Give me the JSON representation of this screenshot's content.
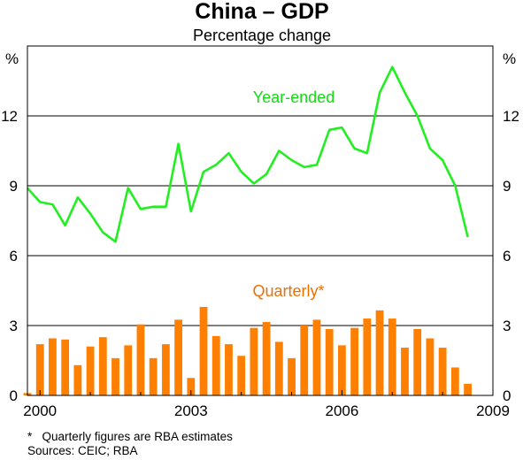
{
  "chart_data": {
    "type": "bar+line",
    "title": "China – GDP",
    "subtitle": "Percentage change",
    "ylabel_left": "%",
    "ylabel_right": "%",
    "ylim": [
      0,
      15
    ],
    "yticks": [
      0,
      3,
      6,
      9,
      12
    ],
    "xlim": [
      1999.75,
      2009.0
    ],
    "xticks": [
      2000,
      2003,
      2006,
      2009
    ],
    "grid": "horizontal",
    "colors": {
      "line": "#22ee22",
      "bar": "#ff8000",
      "annotation_line": "#11dd11",
      "annotation_bar": "#ee7000"
    },
    "annotations": [
      {
        "text": "Year-ended",
        "series": "line"
      },
      {
        "text": "Quarterly*",
        "series": "bar"
      }
    ],
    "series": [
      {
        "name": "Year-ended",
        "type": "line",
        "x_start_year": 1999.75,
        "values": [
          8.9,
          8.3,
          8.2,
          7.3,
          8.5,
          7.8,
          7.0,
          6.6,
          8.9,
          8.0,
          8.1,
          8.1,
          10.8,
          7.9,
          9.6,
          9.9,
          10.4,
          9.6,
          9.1,
          9.5,
          10.5,
          10.1,
          9.8,
          9.9,
          11.4,
          11.5,
          10.6,
          10.4,
          13.0,
          14.1,
          13.0,
          12.0,
          10.6,
          10.1,
          9.0,
          6.8
        ]
      },
      {
        "name": "Quarterly*",
        "type": "bar",
        "x_start_year": 1999.75,
        "values": [
          0.1,
          2.2,
          2.45,
          2.4,
          1.3,
          2.1,
          2.5,
          1.6,
          2.15,
          3.05,
          1.6,
          2.2,
          3.25,
          0.75,
          3.8,
          2.55,
          2.2,
          1.7,
          2.9,
          3.15,
          2.3,
          1.6,
          3.0,
          3.25,
          2.85,
          2.15,
          2.9,
          3.3,
          3.65,
          3.3,
          2.05,
          2.85,
          2.45,
          2.05,
          1.2,
          0.5
        ]
      }
    ],
    "footnotes": [
      "*   Quarterly figures are RBA estimates",
      "Sources: CEIC; RBA"
    ]
  }
}
